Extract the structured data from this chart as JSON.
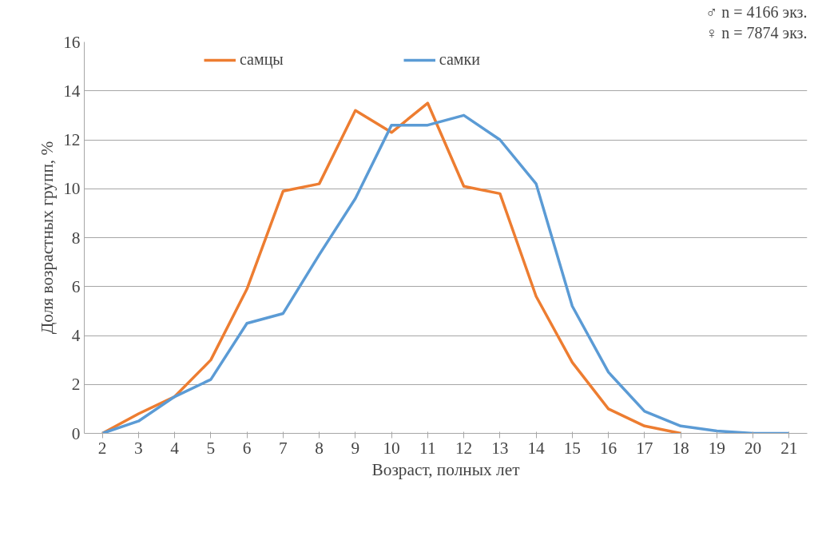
{
  "chart_data": {
    "type": "line",
    "xlabel": "Возраст, полных лет",
    "ylabel": "Доля возрастных групп, %",
    "categories": [
      "2",
      "3",
      "4",
      "5",
      "6",
      "7",
      "8",
      "9",
      "10",
      "11",
      "12",
      "13",
      "14",
      "15",
      "16",
      "17",
      "18",
      "19",
      "20",
      "21"
    ],
    "series": [
      {
        "name": "самцы",
        "color": "#ed7d31",
        "values": [
          0,
          0.8,
          1.5,
          3.0,
          5.9,
          9.9,
          10.2,
          13.2,
          12.3,
          13.5,
          10.1,
          9.8,
          5.6,
          2.9,
          1.0,
          0.3,
          0,
          null,
          null,
          null
        ]
      },
      {
        "name": "самки",
        "color": "#5b9bd5",
        "values": [
          0,
          0.5,
          1.5,
          2.2,
          4.5,
          4.9,
          7.3,
          9.6,
          12.6,
          12.6,
          13.0,
          12.0,
          10.2,
          5.2,
          2.5,
          0.9,
          0.3,
          0.1,
          0,
          0
        ]
      }
    ],
    "ylim": [
      0,
      16
    ],
    "yticks": [
      0,
      2,
      4,
      6,
      8,
      10,
      12,
      14,
      16
    ],
    "grid": "y",
    "legend": "top",
    "marker": "none",
    "line_style": "solid",
    "annotations": [
      "♂ n = 4166 экз.",
      "♀ n = 7874 экз."
    ]
  }
}
